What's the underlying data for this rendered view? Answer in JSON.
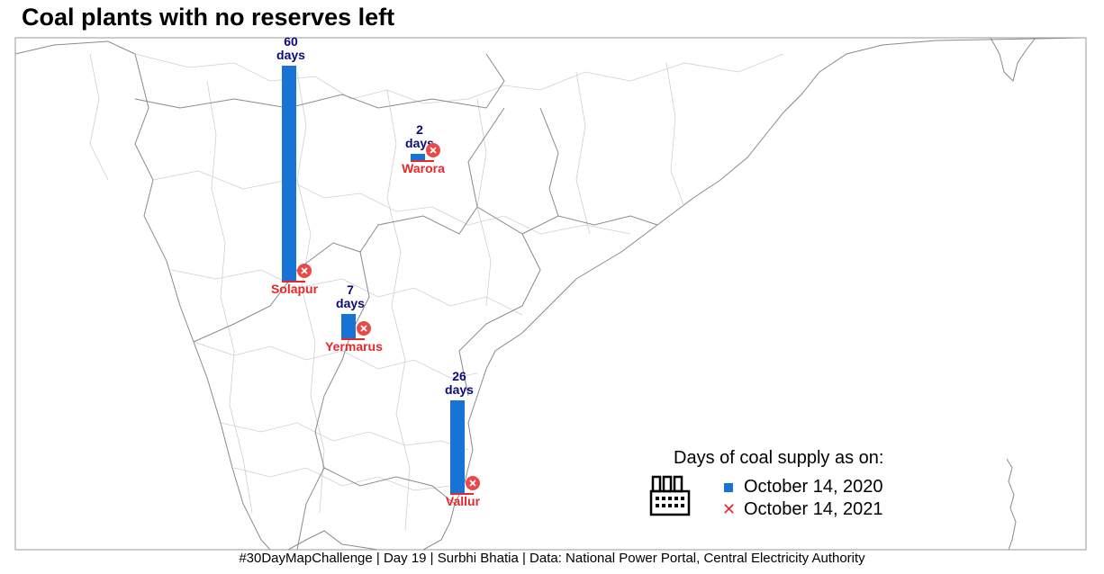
{
  "title": "Coal plants with no reserves left",
  "caption": "#30DayMapChallenge | Day 19 | Surbhi Bhatia | Data: National Power Portal, Central Electricity Authority",
  "legend": {
    "title": "Days of coal supply as on:",
    "items": [
      {
        "label": "October 14, 2020",
        "marker": "square",
        "color": "#1874d4"
      },
      {
        "label": "October 14, 2021",
        "marker": "cross",
        "color": "#e8272a"
      }
    ],
    "icon": "factory-icon"
  },
  "colors": {
    "bar": "#1874d4",
    "value_text": "#0a0a7a",
    "plant_text": "#e8272a",
    "border": "#9a9a9a"
  },
  "plants": [
    {
      "name": "Solapur",
      "days_2020": 60,
      "value_text": "60",
      "unit": "days",
      "days_2021": 0
    },
    {
      "name": "Warora",
      "days_2020": 2,
      "value_text": "2",
      "unit": "days",
      "days_2021": 0
    },
    {
      "name": "Yermarus",
      "days_2020": 7,
      "value_text": "7",
      "unit": "days",
      "days_2021": 0
    },
    {
      "name": "Vallur",
      "days_2020": 26,
      "value_text": "26",
      "unit": "days",
      "days_2021": 0
    }
  ]
}
